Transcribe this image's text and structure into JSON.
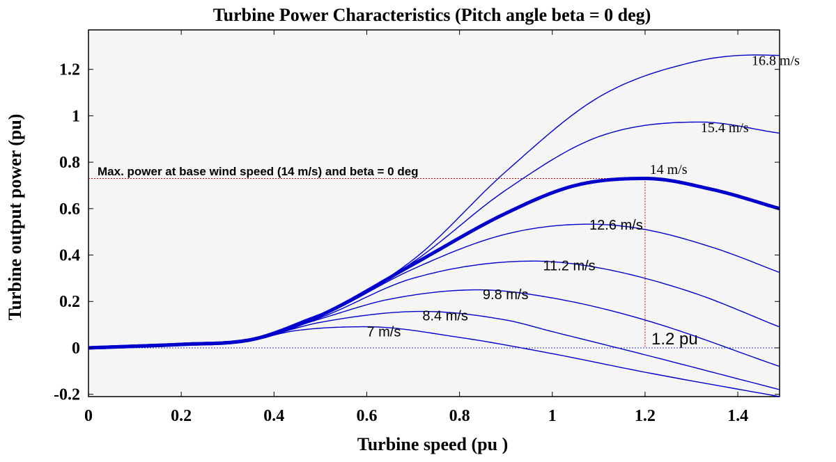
{
  "chart_data": {
    "type": "line",
    "title": "Turbine Power Characteristics (Pitch angle beta = 0 deg)",
    "xlabel": "Turbine speed (pu )",
    "ylabel": "Turbine output power (pu)",
    "xlim": [
      0,
      1.49
    ],
    "ylim": [
      -0.21,
      1.37
    ],
    "xticks": [
      0,
      0.2,
      0.4,
      0.6,
      0.8,
      1,
      1.2,
      1.4
    ],
    "xtick_labels": [
      "0",
      "0.2",
      "0.4",
      "0.6",
      "0.8",
      "1",
      "1.2",
      "1.4"
    ],
    "yticks": [
      -0.2,
      0,
      0.2,
      0.4,
      0.6,
      0.8,
      1,
      1.2
    ],
    "ytick_labels": [
      "-0.2",
      "0",
      "0.2",
      "0.4",
      "0.6",
      "0.8",
      "1",
      "1.2"
    ],
    "grid": false,
    "background": "#f5f5f5",
    "line_color": "#0000cc",
    "series": [
      {
        "name": "7 m/s",
        "wind_speed": 7,
        "peak_x": 0.6,
        "peak_y": 0.091,
        "points": [
          [
            0,
            0
          ],
          [
            0.2,
            0.015
          ],
          [
            0.35,
            0.035
          ],
          [
            0.45,
            0.075
          ],
          [
            0.6,
            0.091
          ],
          [
            0.8,
            0.045
          ],
          [
            1.0,
            -0.025
          ],
          [
            1.2,
            -0.105
          ],
          [
            1.49,
            -0.21
          ]
        ]
      },
      {
        "name": "8.4 m/s",
        "wind_speed": 8.4,
        "peak_x": 0.72,
        "peak_y": 0.157,
        "points": [
          [
            0,
            0
          ],
          [
            0.2,
            0.015
          ],
          [
            0.35,
            0.035
          ],
          [
            0.5,
            0.11
          ],
          [
            0.72,
            0.157
          ],
          [
            0.9,
            0.12
          ],
          [
            1.0,
            0.07
          ],
          [
            1.2,
            -0.03
          ],
          [
            1.49,
            -0.18
          ]
        ]
      },
      {
        "name": "9.8 m/s",
        "wind_speed": 9.8,
        "peak_x": 0.84,
        "peak_y": 0.25,
        "points": [
          [
            0,
            0
          ],
          [
            0.2,
            0.015
          ],
          [
            0.35,
            0.035
          ],
          [
            0.5,
            0.125
          ],
          [
            0.65,
            0.21
          ],
          [
            0.84,
            0.25
          ],
          [
            1.0,
            0.215
          ],
          [
            1.2,
            0.12
          ],
          [
            1.49,
            -0.08
          ]
        ]
      },
      {
        "name": "11.2 m/s",
        "wind_speed": 11.2,
        "peak_x": 0.96,
        "peak_y": 0.374,
        "points": [
          [
            0,
            0
          ],
          [
            0.2,
            0.015
          ],
          [
            0.35,
            0.035
          ],
          [
            0.5,
            0.13
          ],
          [
            0.7,
            0.3
          ],
          [
            0.96,
            0.374
          ],
          [
            1.1,
            0.345
          ],
          [
            1.3,
            0.24
          ],
          [
            1.49,
            0.09
          ]
        ]
      },
      {
        "name": "12.6 m/s",
        "wind_speed": 12.6,
        "peak_x": 1.08,
        "peak_y": 0.533,
        "points": [
          [
            0,
            0
          ],
          [
            0.2,
            0.015
          ],
          [
            0.35,
            0.035
          ],
          [
            0.5,
            0.135
          ],
          [
            0.7,
            0.34
          ],
          [
            0.9,
            0.49
          ],
          [
            1.08,
            0.533
          ],
          [
            1.2,
            0.51
          ],
          [
            1.35,
            0.43
          ],
          [
            1.49,
            0.325
          ]
        ]
      },
      {
        "name": "14 m/s",
        "wind_speed": 14,
        "peak_x": 1.2,
        "peak_y": 0.73,
        "points": [
          [
            0,
            0
          ],
          [
            0.2,
            0.015
          ],
          [
            0.35,
            0.035
          ],
          [
            0.5,
            0.14
          ],
          [
            0.7,
            0.36
          ],
          [
            0.9,
            0.58
          ],
          [
            1.05,
            0.7
          ],
          [
            1.2,
            0.73
          ],
          [
            1.35,
            0.68
          ],
          [
            1.49,
            0.6
          ]
        ]
      },
      {
        "name": "15.4 m/s",
        "wind_speed": 15.4,
        "peak_x": 1.32,
        "peak_y": 0.973,
        "points": [
          [
            0,
            0
          ],
          [
            0.2,
            0.015
          ],
          [
            0.35,
            0.035
          ],
          [
            0.5,
            0.14
          ],
          [
            0.7,
            0.37
          ],
          [
            0.9,
            0.68
          ],
          [
            1.1,
            0.91
          ],
          [
            1.32,
            0.973
          ],
          [
            1.49,
            0.925
          ]
        ]
      },
      {
        "name": "16.8 m/s",
        "wind_speed": 16.8,
        "peak_x": 1.44,
        "peak_y": 1.262,
        "points": [
          [
            0,
            0
          ],
          [
            0.2,
            0.015
          ],
          [
            0.35,
            0.035
          ],
          [
            0.5,
            0.14
          ],
          [
            0.7,
            0.38
          ],
          [
            0.9,
            0.76
          ],
          [
            1.1,
            1.08
          ],
          [
            1.3,
            1.23
          ],
          [
            1.44,
            1.262
          ],
          [
            1.49,
            1.26
          ]
        ]
      }
    ],
    "annotations": {
      "max_power_text": "Max. power at base wind speed (14 m/s) and beta = 0 deg",
      "max_power_y": 0.73,
      "base_speed_x": 1.2,
      "base_speed_text": "1.2 pu",
      "zero_line_y": 0,
      "reference_color": "#cc0000"
    },
    "curve_labels": [
      {
        "text": "16.8 m/s",
        "x": 1.43,
        "y": 1.24,
        "style": "serif"
      },
      {
        "text": "15.4 m/s",
        "x": 1.32,
        "y": 0.95,
        "style": "serif"
      },
      {
        "text": "14 m/s",
        "x": 1.21,
        "y": 0.77,
        "style": "serif"
      },
      {
        "text": "12.6 m/s",
        "x": 1.08,
        "y": 0.53,
        "style": "sans"
      },
      {
        "text": "11.2 m/s",
        "x": 0.98,
        "y": 0.355,
        "style": "sans"
      },
      {
        "text": "9.8 m/s",
        "x": 0.85,
        "y": 0.23,
        "style": "sans"
      },
      {
        "text": "8.4 m/s",
        "x": 0.72,
        "y": 0.14,
        "style": "sans"
      },
      {
        "text": "7 m/s",
        "x": 0.6,
        "y": 0.07,
        "style": "sans"
      }
    ]
  }
}
